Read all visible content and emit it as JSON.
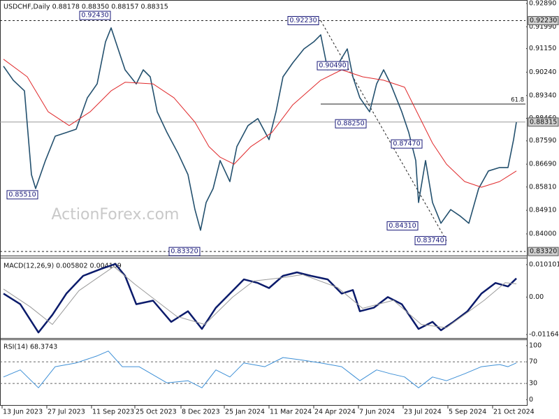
{
  "chart_data": [
    {
      "type": "line",
      "title": "USDCHF,Daily  0.88178 0.88350 0.88157 0.88315",
      "watermark": "ActionForex.com",
      "xlim": [
        -1.5,
        374.5
      ],
      "ylim": [
        0.8319,
        0.93025
      ],
      "yticks": [
        {
          "value": 0.9289,
          "label": "0.92890"
        },
        {
          "value": 0.9199,
          "label": "0.91990"
        },
        {
          "value": 0.9115,
          "label": "0.91150"
        },
        {
          "value": 0.9024,
          "label": "0.90240"
        },
        {
          "value": 0.8934,
          "label": "0.89340"
        },
        {
          "value": 0.8846,
          "label": "0.88460"
        },
        {
          "value": 0.8759,
          "label": "0.87590"
        },
        {
          "value": 0.8669,
          "label": "0.86690"
        },
        {
          "value": 0.8581,
          "label": "0.85810"
        },
        {
          "value": 0.8491,
          "label": "0.84910"
        },
        {
          "value": 0.84,
          "label": "0.84000"
        }
      ],
      "series": [
        {
          "color": "#23506e",
          "x": [
            1,
            8,
            16,
            21,
            24,
            31,
            38,
            46,
            53,
            61,
            68,
            74,
            78,
            83,
            88,
            96,
            101,
            106,
            111,
            118,
            126,
            133,
            138,
            142,
            146,
            151,
            156,
            163,
            168,
            176,
            183,
            191,
            196,
            201,
            208,
            216,
            223,
            228,
            233,
            241,
            247,
            251,
            256,
            263,
            268,
            273,
            278,
            286,
            291,
            296,
            298,
            303,
            308,
            314,
            321,
            328,
            334,
            341,
            348,
            356,
            362,
            366,
            368
          ],
          "values": [
            0.9047,
            0.8993,
            0.8952,
            0.8629,
            0.8575,
            0.8683,
            0.8777,
            0.8791,
            0.8804,
            0.8925,
            0.8979,
            0.9141,
            0.9195,
            0.9114,
            0.9033,
            0.8979,
            0.9033,
            0.9006,
            0.8871,
            0.8791,
            0.871,
            0.8629,
            0.8494,
            0.8414,
            0.8521,
            0.8575,
            0.8683,
            0.8602,
            0.8737,
            0.8818,
            0.8845,
            0.8764,
            0.8871,
            0.9006,
            0.906,
            0.9114,
            0.9141,
            0.9168,
            0.9033,
            0.906,
            0.9114,
            0.9006,
            0.8925,
            0.8871,
            0.8979,
            0.9033,
            0.8979,
            0.8871,
            0.8791,
            0.8683,
            0.8521,
            0.8683,
            0.8521,
            0.8441,
            0.8494,
            0.8468,
            0.8441,
            0.8575,
            0.8643,
            0.8656,
            0.8656,
            0.8764,
            0.8831
          ]
        },
        {
          "color": "#e0292b",
          "x": [
            1,
            18,
            33,
            48,
            63,
            78,
            88,
            108,
            123,
            138,
            148,
            156,
            166,
            178,
            193,
            208,
            228,
            243,
            258,
            273,
            288,
            298,
            308,
            318,
            331,
            343,
            356,
            368
          ],
          "values": [
            0.9074,
            0.9006,
            0.8871,
            0.8818,
            0.8871,
            0.8952,
            0.8985,
            0.8979,
            0.8925,
            0.8831,
            0.8737,
            0.8696,
            0.8669,
            0.8737,
            0.8791,
            0.8898,
            0.8993,
            0.9033,
            0.9006,
            0.8993,
            0.8966,
            0.8858,
            0.875,
            0.8669,
            0.8602,
            0.858,
            0.8602,
            0.8643
          ]
        }
      ],
      "annotations": [
        {
          "x": 78,
          "value": 0.9243,
          "label": "0.92430"
        },
        {
          "x": 227,
          "value": 0.9223,
          "label": "0.92230"
        },
        {
          "x": 26,
          "value": 0.8551,
          "label": "0.85510"
        },
        {
          "x": 142,
          "value": 0.8332,
          "label": "0.83320"
        },
        {
          "x": 248,
          "value": 0.9049,
          "label": "0.90490"
        },
        {
          "x": 261,
          "value": 0.8825,
          "label": "0.88250"
        },
        {
          "x": 301,
          "value": 0.8747,
          "label": "0.87470"
        },
        {
          "x": 298,
          "value": 0.8431,
          "label": "0.84310"
        },
        {
          "x": 318,
          "value": 0.8374,
          "label": "0.83740"
        }
      ],
      "levels": [
        {
          "value": 0.9223,
          "label": "0.92230",
          "style": "dashed"
        },
        {
          "value": 0.88315,
          "label": "0.88315",
          "style": "solid"
        },
        {
          "value": 0.8332,
          "label": "0.83320",
          "style": "dashed"
        }
      ],
      "fib": {
        "x": 228,
        "value": 0.8901,
        "label": "61.8"
      },
      "trendline": {
        "x": [
          228,
          318
        ],
        "values": [
          0.9223,
          0.8374
        ]
      }
    },
    {
      "type": "line",
      "title": "MACD(12,26,9) 0.005802 0.004109",
      "xlim": [
        -1.5,
        374.5
      ],
      "ylim": [
        -0.0125,
        0.0116
      ],
      "yticks": [
        0.010101,
        {
          "value": 0,
          "label": "0.00"
        },
        -0.011645
      ],
      "series": [
        {
          "color": "#0b1b6b",
          "x": [
            1,
            13,
            26,
            36,
            46,
            58,
            71,
            81,
            88,
            96,
            108,
            121,
            133,
            143,
            153,
            163,
            173,
            183,
            191,
            201,
            211,
            221,
            233,
            243,
            251,
            256,
            266,
            276,
            286,
            298,
            308,
            314,
            323,
            333,
            343,
            353,
            362,
            368
          ],
          "values": [
            0.0011,
            -0.0022,
            -0.011,
            -0.0055,
            0.0011,
            0.0066,
            0.0088,
            0.0103,
            0.0066,
            -0.0022,
            -0.0011,
            -0.0077,
            -0.0044,
            -0.0099,
            -0.0033,
            0.0011,
            0.0055,
            0.0044,
            0.0028,
            0.0066,
            0.0077,
            0.0066,
            0.0055,
            0.0011,
            0.0022,
            -0.0044,
            -0.0033,
            0,
            -0.0022,
            -0.0099,
            -0.0077,
            -0.0103,
            -0.0077,
            -0.0044,
            0.0011,
            0.0044,
            0.0033,
            0.0058
          ]
        },
        {
          "color": "#9a9a9a",
          "x": [
            1,
            20,
            36,
            55,
            80,
            95,
            125,
            145,
            165,
            180,
            200,
            215,
            240,
            258,
            280,
            300,
            318,
            345,
            360,
            368
          ],
          "values": [
            0.0025,
            -0.003,
            -0.0085,
            0.002,
            0.0095,
            0.004,
            -0.006,
            -0.0085,
            0,
            0.005,
            0.006,
            0.007,
            0.003,
            -0.0035,
            -0.001,
            -0.0085,
            -0.0095,
            -0.001,
            0.0045,
            0.0041
          ]
        }
      ]
    },
    {
      "type": "line",
      "title": "RSI(14) 68.3743",
      "xlim": [
        -1.5,
        374.5
      ],
      "ylim": [
        -10,
        109
      ],
      "yticks": [
        100,
        70,
        30,
        0
      ],
      "dashed_levels": [
        70,
        30
      ],
      "xticks": [
        {
          "value": 0,
          "label": "13 Jun 2023"
        },
        {
          "value": 32,
          "label": "27 Jul 2023"
        },
        {
          "value": 64,
          "label": "11 Sep 2023"
        },
        {
          "value": 95,
          "label": "25 Oct 2023"
        },
        {
          "value": 128,
          "label": "8 Dec 2023"
        },
        {
          "value": 159,
          "label": "25 Jan 2024"
        },
        {
          "value": 191,
          "label": "11 Mar 2024"
        },
        {
          "value": 223,
          "label": "24 Apr 2024"
        },
        {
          "value": 255,
          "label": "7 Jun 2024"
        },
        {
          "value": 287,
          "label": "23 Jul 2024"
        },
        {
          "value": 319,
          "label": "5 Sep 2024"
        },
        {
          "value": 351,
          "label": "21 Oct 2024"
        }
      ],
      "series": [
        {
          "color": "#3d8fd6",
          "x": [
            1,
            13,
            26,
            38,
            53,
            68,
            76,
            86,
            98,
            118,
            133,
            143,
            153,
            163,
            173,
            188,
            201,
            213,
            228,
            243,
            256,
            268,
            278,
            288,
            298,
            308,
            318,
            331,
            343,
            356,
            362,
            368
          ],
          "values": [
            42,
            55,
            22,
            61,
            68,
            81,
            90,
            61,
            61,
            31,
            35,
            22,
            55,
            42,
            68,
            61,
            78,
            74,
            68,
            61,
            35,
            55,
            48,
            42,
            22,
            42,
            35,
            48,
            61,
            65,
            61,
            68
          ]
        }
      ]
    }
  ]
}
